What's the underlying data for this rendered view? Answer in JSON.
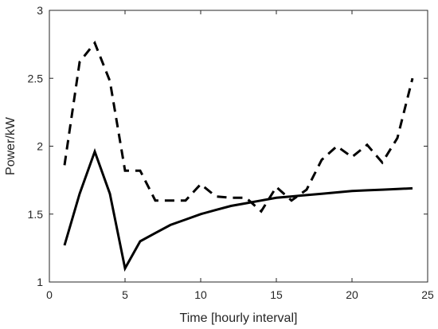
{
  "chart_data": {
    "type": "line",
    "title": "",
    "xlabel": "Time [hourly interval]",
    "ylabel": "Power/kW",
    "xlim": [
      0,
      25
    ],
    "ylim": [
      1,
      3
    ],
    "xticks": [
      0,
      5,
      10,
      15,
      20,
      25
    ],
    "yticks": [
      1,
      1.5,
      2,
      2.5,
      3
    ],
    "ytick_labels": [
      "1",
      "1.5",
      "2",
      "2.5",
      "3"
    ],
    "grid": false,
    "legend": "none",
    "series": [
      {
        "style": "solid",
        "color": "#000000",
        "x": [
          1,
          2,
          3,
          4,
          5,
          6,
          7,
          8,
          9,
          10,
          11,
          12,
          13,
          14,
          15,
          16,
          17,
          18,
          19,
          20,
          21,
          22,
          23,
          24
        ],
        "y": [
          1.27,
          1.65,
          1.96,
          1.65,
          1.1,
          1.3,
          1.36,
          1.42,
          1.46,
          1.5,
          1.53,
          1.56,
          1.58,
          1.6,
          1.62,
          1.63,
          1.64,
          1.65,
          1.66,
          1.67,
          1.675,
          1.68,
          1.685,
          1.69
        ]
      },
      {
        "style": "dashed",
        "color": "#000000",
        "x": [
          1,
          2,
          3,
          4,
          5,
          6,
          7,
          8,
          9,
          10,
          11,
          12,
          13,
          14,
          15,
          16,
          17,
          18,
          19,
          20,
          21,
          22,
          23,
          24
        ],
        "y": [
          1.86,
          2.62,
          2.76,
          2.48,
          1.82,
          1.82,
          1.6,
          1.6,
          1.6,
          1.72,
          1.63,
          1.62,
          1.62,
          1.52,
          1.7,
          1.6,
          1.68,
          1.9,
          2.0,
          1.92,
          2.01,
          1.88,
          2.06,
          2.5
        ]
      }
    ]
  }
}
